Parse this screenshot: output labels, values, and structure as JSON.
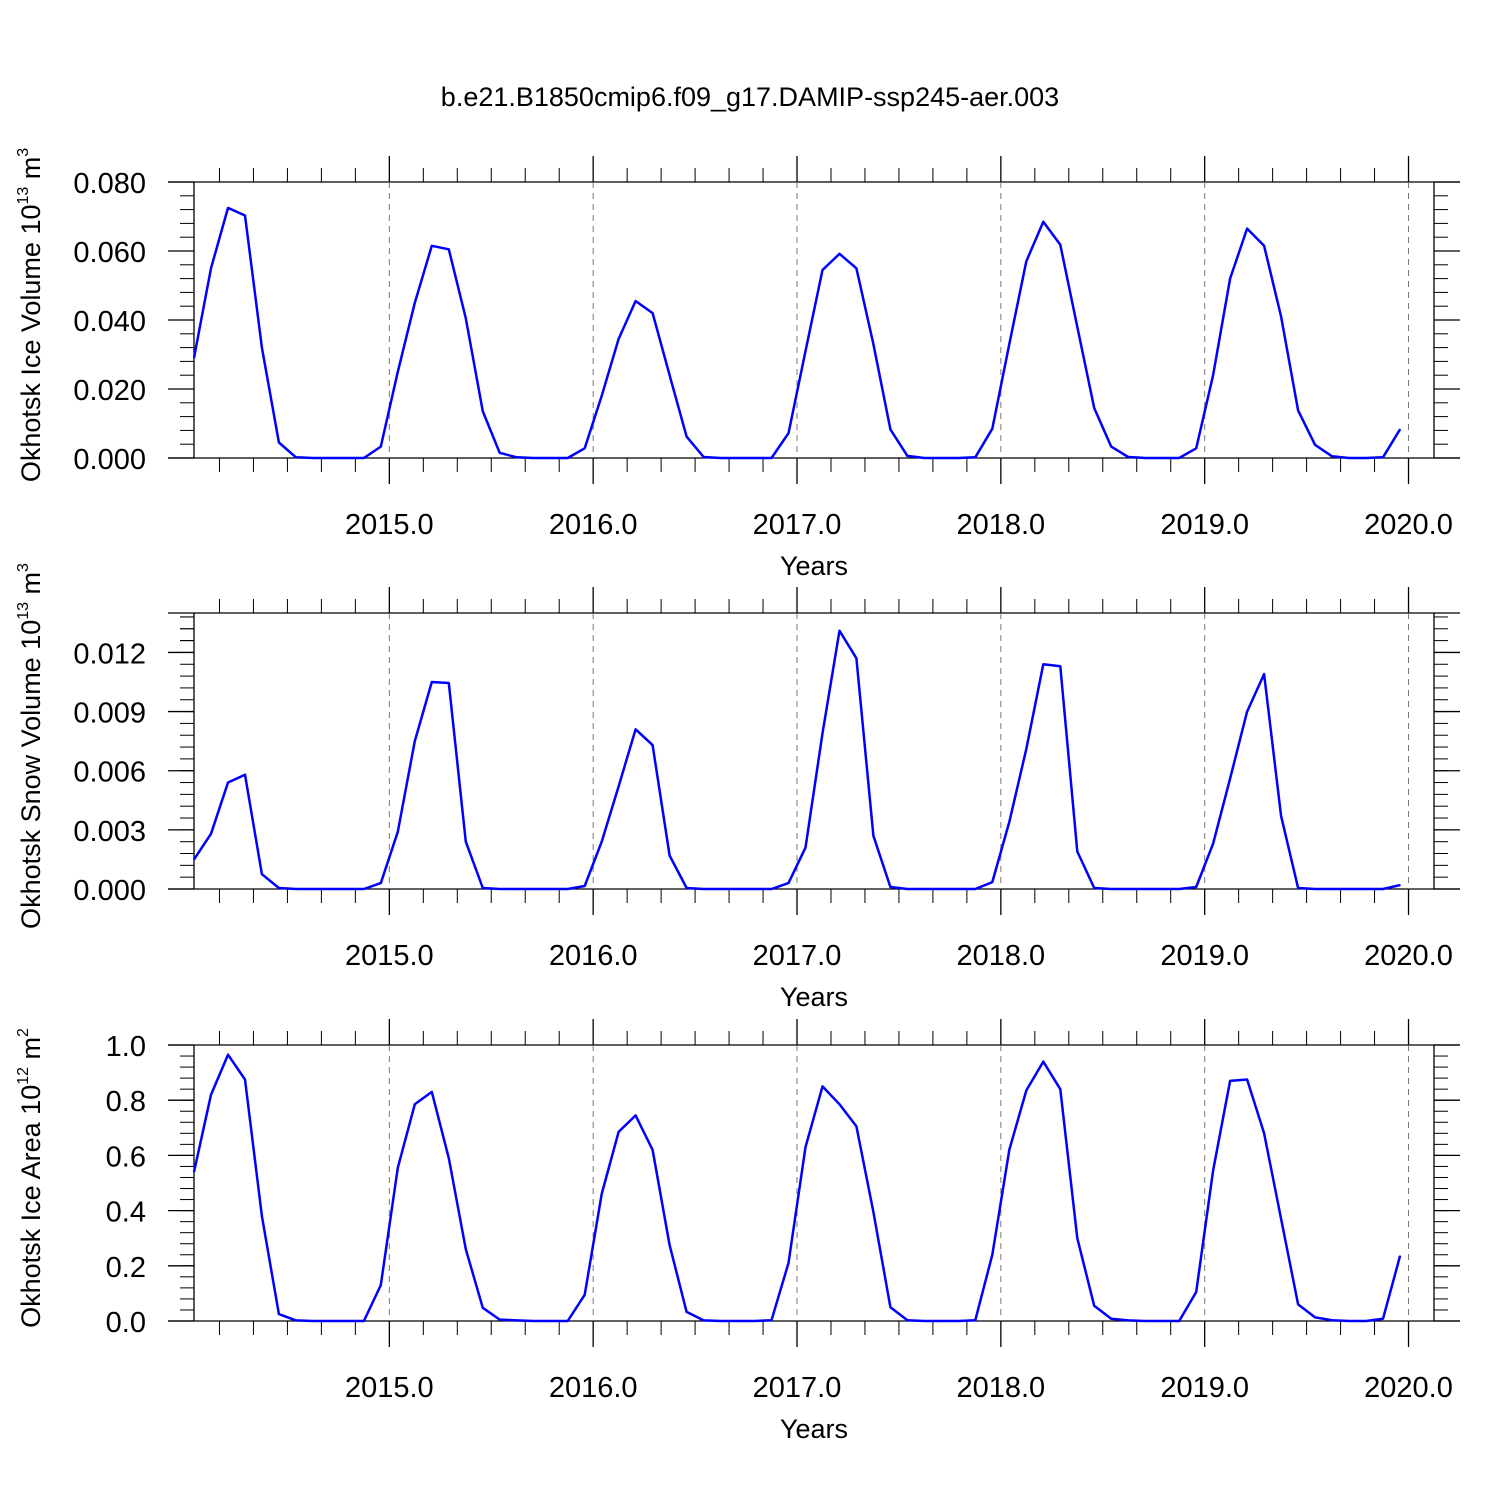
{
  "title": "b.e21.B1850cmip6.f09_g17.DAMIP-ssp245-aer.003",
  "line_color": "#0000ff",
  "chart_data": [
    {
      "type": "line",
      "xlabel": "Years",
      "ylabel": "Okhotsk Ice Volume 10",
      "ylabel_exp": "13",
      "ylabel_unit": " m",
      "ylabel_unit_exp": "3",
      "xlim": [
        2014.0417,
        2020.125
      ],
      "ylim": [
        0,
        0.08
      ],
      "x_ticks": [
        "2015.0",
        "2016.0",
        "2017.0",
        "2018.0",
        "2019.0",
        "2020.0"
      ],
      "y_ticks": [
        "0.000",
        "0.020",
        "0.040",
        "0.060",
        "0.080"
      ],
      "grid": "vertical dashed at major x ticks",
      "x_start": 2014.0417,
      "x_step": 0.08333,
      "values": [
        0.029,
        0.055,
        0.0725,
        0.0703,
        0.032,
        0.0045,
        0.0002,
        0.0,
        0.0,
        0.0,
        0.0,
        0.0033,
        0.025,
        0.045,
        0.0615,
        0.0605,
        0.0405,
        0.0135,
        0.0015,
        0.0002,
        0.0,
        0.0,
        0.0,
        0.0028,
        0.018,
        0.0345,
        0.0455,
        0.042,
        0.024,
        0.0062,
        0.0003,
        0.0,
        0.0,
        0.0,
        0.0,
        0.0072,
        0.031,
        0.0545,
        0.0592,
        0.055,
        0.033,
        0.0083,
        0.0006,
        0.0,
        0.0,
        0.0,
        0.0002,
        0.0085,
        0.033,
        0.057,
        0.0685,
        0.0618,
        0.038,
        0.0145,
        0.0033,
        0.0003,
        0.0,
        0.0,
        0.0,
        0.0028,
        0.024,
        0.052,
        0.0665,
        0.0615,
        0.041,
        0.0138,
        0.0038,
        0.0005,
        0.0,
        0.0,
        0.0002,
        0.0083
      ]
    },
    {
      "type": "line",
      "xlabel": "Years",
      "ylabel": "Okhotsk Snow Volume 10",
      "ylabel_exp": "13",
      "ylabel_unit": " m",
      "ylabel_unit_exp": "3",
      "xlim": [
        2014.0417,
        2020.125
      ],
      "ylim": [
        0,
        0.014
      ],
      "x_ticks": [
        "2015.0",
        "2016.0",
        "2017.0",
        "2018.0",
        "2019.0",
        "2020.0"
      ],
      "y_ticks": [
        "0.000",
        "0.003",
        "0.006",
        "0.009",
        "0.012"
      ],
      "grid": "vertical dashed at major x ticks",
      "x_start": 2014.0417,
      "x_step": 0.08333,
      "values": [
        0.0015,
        0.0028,
        0.0054,
        0.0058,
        0.00075,
        5e-05,
        0.0,
        0.0,
        0.0,
        0.0,
        0.0,
        0.0003,
        0.0029,
        0.0075,
        0.0105,
        0.01045,
        0.0024,
        5e-05,
        0.0,
        0.0,
        0.0,
        0.0,
        0.0,
        0.00015,
        0.0024,
        0.0052,
        0.0081,
        0.0073,
        0.0017,
        5e-05,
        0.0,
        0.0,
        0.0,
        0.0,
        0.0,
        0.0003,
        0.0021,
        0.0079,
        0.0131,
        0.0117,
        0.0027,
        0.0001,
        0.0,
        0.0,
        0.0,
        0.0,
        0.0,
        0.00035,
        0.0034,
        0.0071,
        0.0114,
        0.0113,
        0.0019,
        5e-05,
        0.0,
        0.0,
        0.0,
        0.0,
        0.0,
        0.0001,
        0.0023,
        0.0056,
        0.009,
        0.0109,
        0.0037,
        5e-05,
        0.0,
        0.0,
        0.0,
        0.0,
        0.0,
        0.0002
      ]
    },
    {
      "type": "line",
      "xlabel": "Years",
      "ylabel": "Okhotsk Ice Area 10",
      "ylabel_exp": "12",
      "ylabel_unit": " m",
      "ylabel_unit_exp": "2",
      "xlim": [
        2014.0417,
        2020.125
      ],
      "ylim": [
        0,
        1.0
      ],
      "x_ticks": [
        "2015.0",
        "2016.0",
        "2017.0",
        "2018.0",
        "2019.0",
        "2020.0"
      ],
      "y_ticks": [
        "0.0",
        "0.2",
        "0.4",
        "0.6",
        "0.8",
        "1.0"
      ],
      "grid": "vertical dashed at major x ticks",
      "x_start": 2014.0417,
      "x_step": 0.08333,
      "values": [
        0.54,
        0.82,
        0.965,
        0.875,
        0.38,
        0.025,
        0.002,
        0.0,
        0.0,
        0.0,
        0.0,
        0.13,
        0.555,
        0.785,
        0.83,
        0.59,
        0.26,
        0.048,
        0.005,
        0.002,
        0.0,
        0.0,
        0.0,
        0.095,
        0.46,
        0.685,
        0.745,
        0.62,
        0.275,
        0.033,
        0.002,
        0.0,
        0.0,
        0.0,
        0.003,
        0.21,
        0.63,
        0.85,
        0.785,
        0.705,
        0.395,
        0.05,
        0.003,
        0.0,
        0.0,
        0.0,
        0.003,
        0.24,
        0.62,
        0.835,
        0.94,
        0.84,
        0.3,
        0.055,
        0.008,
        0.002,
        0.0,
        0.0,
        0.0,
        0.105,
        0.545,
        0.87,
        0.875,
        0.68,
        0.37,
        0.06,
        0.013,
        0.003,
        0.0,
        0.0,
        0.008,
        0.235
      ]
    }
  ]
}
